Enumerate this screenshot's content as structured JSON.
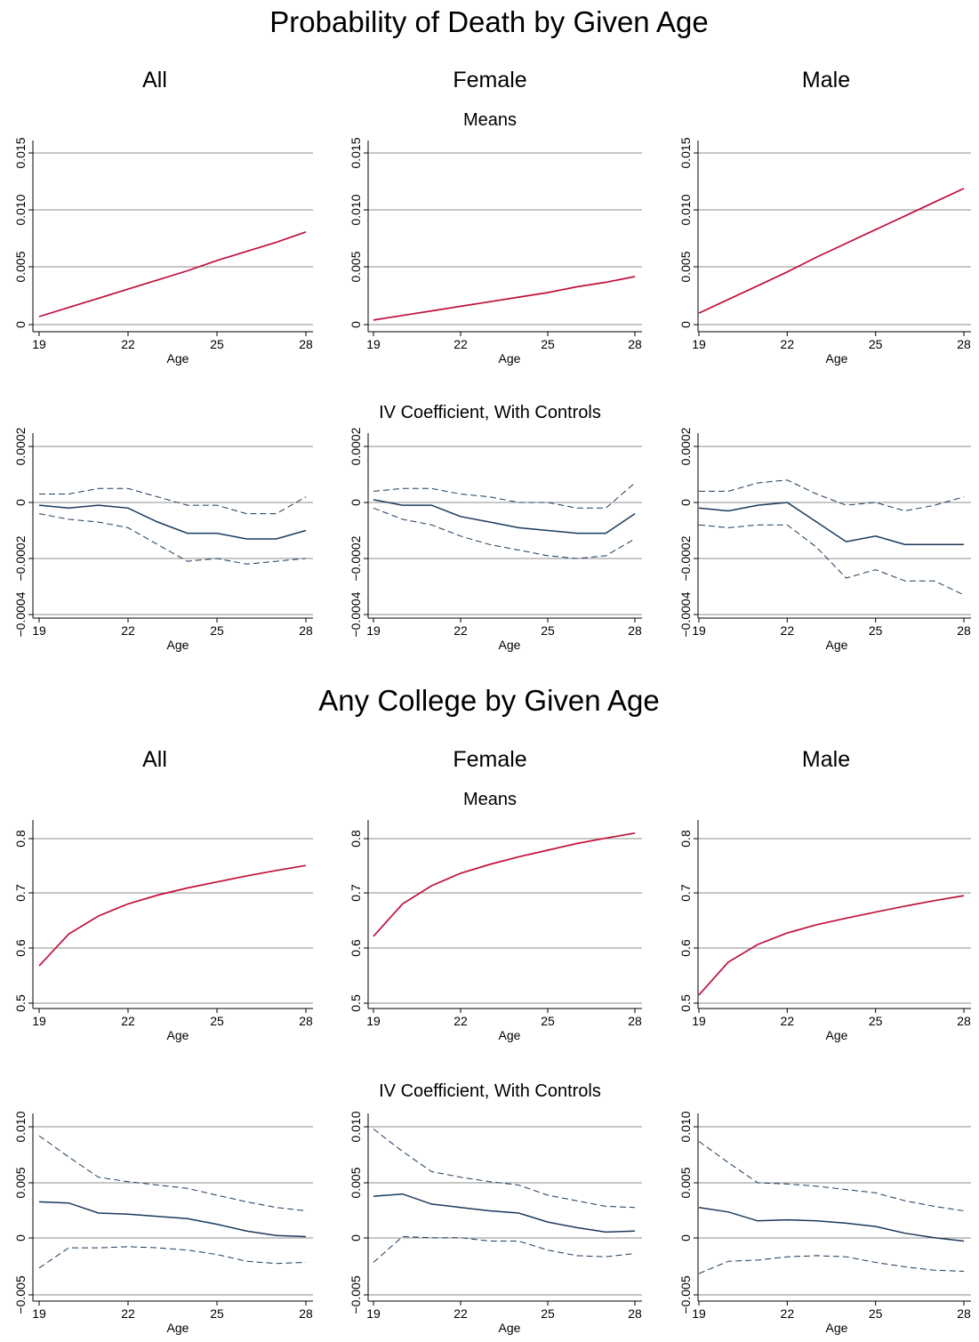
{
  "figure": {
    "sections": [
      {
        "title": "Probability of Death by Given Age",
        "columns": [
          "All",
          "Female",
          "Male"
        ],
        "row_titles": [
          "Means",
          "IV Coefficient, With Controls"
        ]
      },
      {
        "title": "Any College by Given Age",
        "columns": [
          "All",
          "Female",
          "Male"
        ],
        "row_titles": [
          "Means",
          "IV Coefficient, With Controls"
        ]
      }
    ],
    "xlabel": "Age",
    "colors": {
      "mean_line": "#c0103a",
      "coef_line": "#1a3a5c",
      "grid": "#8c8c8c"
    }
  },
  "chart_data": [
    {
      "type": "line",
      "section": "Probability of Death by Given Age",
      "row": "Means",
      "group": "All",
      "xlabel": "Age",
      "xlim": [
        19,
        28
      ],
      "xticks": [
        19,
        22,
        25,
        28
      ],
      "ylim": [
        0,
        0.015
      ],
      "yticks": [
        0,
        0.005,
        0.01,
        0.015
      ],
      "ytick_labels": [
        "0",
        "0.005",
        "0.010",
        "0.015"
      ],
      "grid": true,
      "x": [
        19,
        20,
        21,
        22,
        23,
        24,
        25,
        26,
        27,
        28
      ],
      "series": [
        {
          "style": "solid",
          "values": [
            0.0007,
            0.0015,
            0.0023,
            0.0031,
            0.0039,
            0.0047,
            0.0056,
            0.0064,
            0.0072,
            0.0081
          ]
        }
      ]
    },
    {
      "type": "line",
      "section": "Probability of Death by Given Age",
      "row": "Means",
      "group": "Female",
      "xlabel": "Age",
      "xlim": [
        19,
        28
      ],
      "xticks": [
        19,
        22,
        25,
        28
      ],
      "ylim": [
        0,
        0.015
      ],
      "yticks": [
        0,
        0.005,
        0.01,
        0.015
      ],
      "ytick_labels": [
        "0",
        "0.005",
        "0.010",
        "0.015"
      ],
      "grid": true,
      "x": [
        19,
        20,
        21,
        22,
        23,
        24,
        25,
        26,
        27,
        28
      ],
      "series": [
        {
          "style": "solid",
          "values": [
            0.0004,
            0.0008,
            0.0012,
            0.0016,
            0.002,
            0.0024,
            0.0028,
            0.0033,
            0.0037,
            0.0042
          ]
        }
      ]
    },
    {
      "type": "line",
      "section": "Probability of Death by Given Age",
      "row": "Means",
      "group": "Male",
      "xlabel": "Age",
      "xlim": [
        19,
        28
      ],
      "xticks": [
        19,
        22,
        25,
        28
      ],
      "ylim": [
        0,
        0.015
      ],
      "yticks": [
        0,
        0.005,
        0.01,
        0.015
      ],
      "ytick_labels": [
        "0",
        "0.005",
        "0.010",
        "0.015"
      ],
      "grid": true,
      "x": [
        19,
        20,
        21,
        22,
        23,
        24,
        25,
        26,
        27,
        28
      ],
      "series": [
        {
          "style": "solid",
          "values": [
            0.001,
            0.0022,
            0.0034,
            0.0046,
            0.0059,
            0.0071,
            0.0083,
            0.0095,
            0.0107,
            0.0119
          ]
        }
      ]
    },
    {
      "type": "line",
      "section": "Probability of Death by Given Age",
      "row": "IV Coefficient, With Controls",
      "group": "All",
      "xlabel": "Age",
      "xlim": [
        19,
        28
      ],
      "xticks": [
        19,
        22,
        25,
        28
      ],
      "ylim": [
        -0.0004,
        0.0002
      ],
      "yticks": [
        -0.0004,
        -0.0002,
        0,
        0.0002
      ],
      "ytick_labels": [
        "−0.0004",
        "−0.0002",
        "0",
        "0.0002"
      ],
      "grid": true,
      "x": [
        19,
        20,
        21,
        22,
        23,
        24,
        25,
        26,
        27,
        28
      ],
      "series": [
        {
          "style": "solid",
          "values": [
            -1e-05,
            -2e-05,
            -1e-05,
            -2e-05,
            -7e-05,
            -0.00011,
            -0.00011,
            -0.00013,
            -0.00013,
            -0.0001
          ]
        },
        {
          "style": "dashed",
          "values": [
            3e-05,
            3e-05,
            5e-05,
            5e-05,
            2e-05,
            -1e-05,
            -1e-05,
            -4e-05,
            -4e-05,
            2e-05
          ]
        },
        {
          "style": "dashed",
          "values": [
            -4e-05,
            -6e-05,
            -7e-05,
            -9e-05,
            -0.00015,
            -0.00021,
            -0.0002,
            -0.00022,
            -0.00021,
            -0.0002
          ]
        }
      ]
    },
    {
      "type": "line",
      "section": "Probability of Death by Given Age",
      "row": "IV Coefficient, With Controls",
      "group": "Female",
      "xlabel": "Age",
      "xlim": [
        19,
        28
      ],
      "xticks": [
        19,
        22,
        25,
        28
      ],
      "ylim": [
        -0.0004,
        0.0002
      ],
      "yticks": [
        -0.0004,
        -0.0002,
        0,
        0.0002
      ],
      "ytick_labels": [
        "−0.0004",
        "−0.0002",
        "0",
        "0.0002"
      ],
      "grid": true,
      "x": [
        19,
        20,
        21,
        22,
        23,
        24,
        25,
        26,
        27,
        28
      ],
      "series": [
        {
          "style": "solid",
          "values": [
            1e-05,
            -1e-05,
            -1e-05,
            -5e-05,
            -7e-05,
            -9e-05,
            -0.0001,
            -0.00011,
            -0.00011,
            -4e-05
          ]
        },
        {
          "style": "dashed",
          "values": [
            4e-05,
            5e-05,
            5e-05,
            3e-05,
            2e-05,
            0.0,
            0.0,
            -2e-05,
            -2e-05,
            7e-05
          ]
        },
        {
          "style": "dashed",
          "values": [
            -2e-05,
            -6e-05,
            -8e-05,
            -0.00012,
            -0.00015,
            -0.00017,
            -0.00019,
            -0.0002,
            -0.00019,
            -0.00013
          ]
        }
      ]
    },
    {
      "type": "line",
      "section": "Probability of Death by Given Age",
      "row": "IV Coefficient, With Controls",
      "group": "Male",
      "xlabel": "Age",
      "xlim": [
        19,
        28
      ],
      "xticks": [
        19,
        22,
        25,
        28
      ],
      "ylim": [
        -0.0004,
        0.0002
      ],
      "yticks": [
        -0.0004,
        -0.0002,
        0,
        0.0002
      ],
      "ytick_labels": [
        "−0.0004",
        "−0.0002",
        "0",
        "0.0002"
      ],
      "grid": true,
      "x": [
        19,
        20,
        21,
        22,
        23,
        24,
        25,
        26,
        27,
        28
      ],
      "series": [
        {
          "style": "solid",
          "values": [
            -2e-05,
            -3e-05,
            -1e-05,
            0.0,
            -7e-05,
            -0.00014,
            -0.00012,
            -0.00015,
            -0.00015,
            -0.00015
          ]
        },
        {
          "style": "dashed",
          "values": [
            4e-05,
            4e-05,
            7e-05,
            8e-05,
            3e-05,
            -1e-05,
            0.0,
            -3e-05,
            -1e-05,
            2e-05
          ]
        },
        {
          "style": "dashed",
          "values": [
            -8e-05,
            -9e-05,
            -8e-05,
            -8e-05,
            -0.00016,
            -0.00027,
            -0.00024,
            -0.00028,
            -0.00028,
            -0.00033
          ]
        }
      ]
    },
    {
      "type": "line",
      "section": "Any College by Given Age",
      "row": "Means",
      "group": "All",
      "xlabel": "Age",
      "xlim": [
        19,
        28
      ],
      "xticks": [
        19,
        22,
        25,
        28
      ],
      "ylim": [
        0.5,
        0.8
      ],
      "yticks": [
        0.5,
        0.6,
        0.7,
        0.8
      ],
      "ytick_labels": [
        "0.5",
        "0.6",
        "0.7",
        "0.8"
      ],
      "grid": true,
      "x": [
        19,
        20,
        21,
        22,
        23,
        24,
        25,
        26,
        27,
        28
      ],
      "series": [
        {
          "style": "solid",
          "values": [
            0.568,
            0.626,
            0.659,
            0.681,
            0.697,
            0.71,
            0.721,
            0.732,
            0.742,
            0.751
          ]
        }
      ]
    },
    {
      "type": "line",
      "section": "Any College by Given Age",
      "row": "Means",
      "group": "Female",
      "xlabel": "Age",
      "xlim": [
        19,
        28
      ],
      "xticks": [
        19,
        22,
        25,
        28
      ],
      "ylim": [
        0.5,
        0.8
      ],
      "yticks": [
        0.5,
        0.6,
        0.7,
        0.8
      ],
      "ytick_labels": [
        "0.5",
        "0.6",
        "0.7",
        "0.8"
      ],
      "grid": true,
      "x": [
        19,
        20,
        21,
        22,
        23,
        24,
        25,
        26,
        27,
        28
      ],
      "series": [
        {
          "style": "solid",
          "values": [
            0.622,
            0.681,
            0.714,
            0.737,
            0.753,
            0.767,
            0.779,
            0.791,
            0.801,
            0.81
          ]
        }
      ]
    },
    {
      "type": "line",
      "section": "Any College by Given Age",
      "row": "Means",
      "group": "Male",
      "xlabel": "Age",
      "xlim": [
        19,
        28
      ],
      "xticks": [
        19,
        22,
        25,
        28
      ],
      "ylim": [
        0.5,
        0.8
      ],
      "yticks": [
        0.5,
        0.6,
        0.7,
        0.8
      ],
      "ytick_labels": [
        "0.5",
        "0.6",
        "0.7",
        "0.8"
      ],
      "grid": true,
      "x": [
        19,
        20,
        21,
        22,
        23,
        24,
        25,
        26,
        27,
        28
      ],
      "series": [
        {
          "style": "solid",
          "values": [
            0.515,
            0.575,
            0.607,
            0.628,
            0.643,
            0.655,
            0.666,
            0.677,
            0.687,
            0.696
          ]
        }
      ]
    },
    {
      "type": "line",
      "section": "Any College by Given Age",
      "row": "IV Coefficient, With Controls",
      "group": "All",
      "xlabel": "Age",
      "xlim": [
        19,
        28
      ],
      "xticks": [
        19,
        22,
        25,
        28
      ],
      "ylim": [
        -0.0055,
        0.011
      ],
      "yticks": [
        -0.005,
        0,
        0.005,
        0.01
      ],
      "ytick_labels": [
        "−0.005",
        "0",
        "0.005",
        "0.010"
      ],
      "grid": true,
      "x": [
        19,
        20,
        21,
        22,
        23,
        24,
        25,
        26,
        27,
        28
      ],
      "series": [
        {
          "style": "solid",
          "values": [
            0.0033,
            0.0032,
            0.0023,
            0.0022,
            0.002,
            0.0018,
            0.0013,
            0.0007,
            0.0003,
            0.0002
          ]
        },
        {
          "style": "dashed",
          "values": [
            0.0092,
            0.0073,
            0.0055,
            0.0051,
            0.0048,
            0.0045,
            0.0039,
            0.0033,
            0.0028,
            0.0025
          ]
        },
        {
          "style": "dashed",
          "values": [
            -0.0026,
            -0.0008,
            -0.0008,
            -0.0007,
            -0.0008,
            -0.001,
            -0.0014,
            -0.002,
            -0.0022,
            -0.0021
          ]
        }
      ]
    },
    {
      "type": "line",
      "section": "Any College by Given Age",
      "row": "IV Coefficient, With Controls",
      "group": "Female",
      "xlabel": "Age",
      "xlim": [
        19,
        28
      ],
      "xticks": [
        19,
        22,
        25,
        28
      ],
      "ylim": [
        -0.0055,
        0.011
      ],
      "yticks": [
        -0.005,
        0,
        0.005,
        0.01
      ],
      "ytick_labels": [
        "−0.005",
        "0",
        "0.005",
        "0.010"
      ],
      "grid": true,
      "x": [
        19,
        20,
        21,
        22,
        23,
        24,
        25,
        26,
        27,
        28
      ],
      "series": [
        {
          "style": "solid",
          "values": [
            0.0038,
            0.004,
            0.0031,
            0.0028,
            0.0025,
            0.0023,
            0.0015,
            0.001,
            0.0006,
            0.0007
          ]
        },
        {
          "style": "dashed",
          "values": [
            0.0098,
            0.0078,
            0.006,
            0.0055,
            0.0051,
            0.0048,
            0.0039,
            0.0034,
            0.0029,
            0.0028
          ]
        },
        {
          "style": "dashed",
          "values": [
            -0.0021,
            0.0002,
            0.0001,
            0.0001,
            -0.0002,
            -0.0002,
            -0.001,
            -0.0015,
            -0.0016,
            -0.0013
          ]
        }
      ]
    },
    {
      "type": "line",
      "section": "Any College by Given Age",
      "row": "IV Coefficient, With Controls",
      "group": "Male",
      "xlabel": "Age",
      "xlim": [
        19,
        28
      ],
      "xticks": [
        19,
        22,
        25,
        28
      ],
      "ylim": [
        -0.0055,
        0.011
      ],
      "yticks": [
        -0.005,
        0,
        0.005,
        0.01
      ],
      "ytick_labels": [
        "−0.005",
        "0",
        "0.005",
        "0.010"
      ],
      "grid": true,
      "x": [
        19,
        20,
        21,
        22,
        23,
        24,
        25,
        26,
        27,
        28
      ],
      "series": [
        {
          "style": "solid",
          "values": [
            0.0028,
            0.0024,
            0.0016,
            0.0017,
            0.0016,
            0.0014,
            0.0011,
            0.0005,
            0.0001,
            -0.0002
          ]
        },
        {
          "style": "dashed",
          "values": [
            0.0087,
            0.0068,
            0.005,
            0.0049,
            0.0047,
            0.0044,
            0.0041,
            0.0034,
            0.0029,
            0.0025
          ]
        },
        {
          "style": "dashed",
          "values": [
            -0.0031,
            -0.002,
            -0.0019,
            -0.0016,
            -0.0015,
            -0.0016,
            -0.0021,
            -0.0025,
            -0.0028,
            -0.0029
          ]
        }
      ]
    }
  ]
}
